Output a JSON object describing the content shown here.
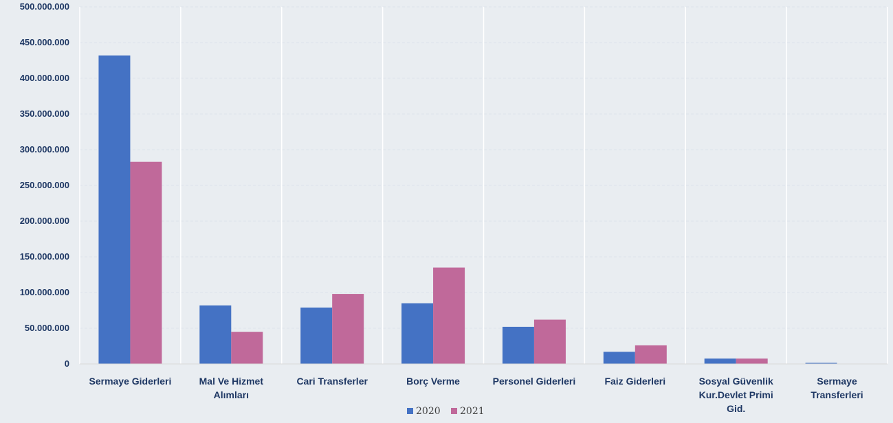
{
  "chart_data": {
    "type": "bar",
    "categories": [
      [
        "Sermaye Giderleri"
      ],
      [
        "Mal Ve Hizmet",
        "Alımları"
      ],
      [
        "Cari Transferler"
      ],
      [
        "Borç Verme"
      ],
      [
        "Personel Giderleri"
      ],
      [
        "Faiz Giderleri"
      ],
      [
        "Sosyal Güvenlik",
        "Kur.Devlet Primi",
        "Gid."
      ],
      [
        "Sermaye",
        "Transferleri"
      ]
    ],
    "series": [
      {
        "name": "2020",
        "color": "#4472c4",
        "values": [
          432000000,
          82000000,
          79000000,
          85000000,
          52000000,
          17000000,
          7500000,
          1500000
        ]
      },
      {
        "name": "2021",
        "color": "#c0699a",
        "values": [
          283000000,
          45000000,
          98000000,
          135000000,
          62000000,
          26000000,
          7500000,
          0
        ]
      }
    ],
    "ylim": [
      0,
      500000000
    ],
    "ytick_step": 50000000,
    "yticks": [
      "0",
      "50.000.000",
      "100.000.000",
      "150.000.000",
      "200.000.000",
      "250.000.000",
      "300.000.000",
      "350.000.000",
      "400.000.000",
      "450.000.000",
      "500.000.000"
    ],
    "title": "",
    "xlabel": "",
    "ylabel": "",
    "grid": true,
    "legend_position": "bottom-center"
  }
}
